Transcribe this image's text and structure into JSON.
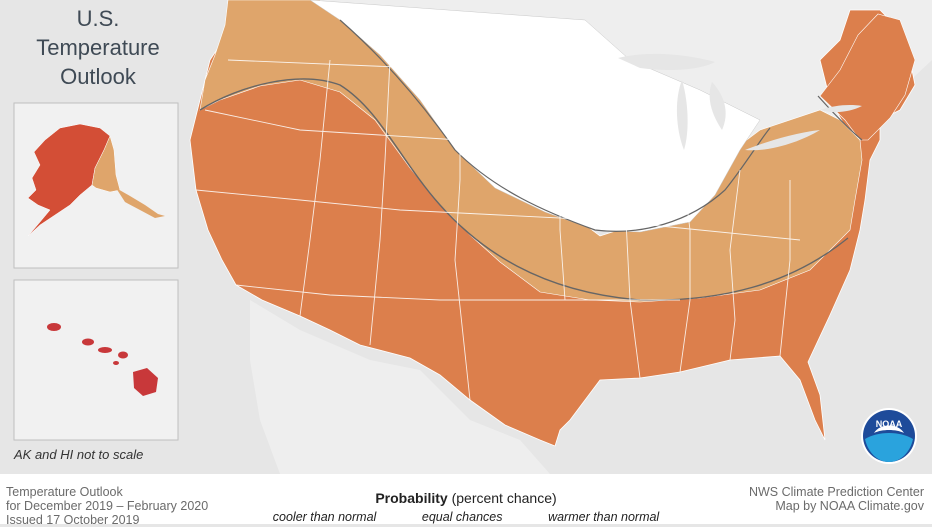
{
  "title": {
    "line1": "U.S.",
    "line2": "Temperature",
    "line3": "Outlook"
  },
  "inset_note": "AK and HI not to scale",
  "footer": {
    "left": {
      "line1": "Temperature Outlook",
      "line2": "for December 2019 – February 2020",
      "line3": "Issued 17 October 2019"
    },
    "center": {
      "label_bold": "Probability",
      "label_rest": " (percent chance)"
    },
    "legend": [
      "cooler than normal",
      "equal chances",
      "warmer than normal"
    ],
    "right": {
      "line1": "NWS Climate Prediction Center",
      "line2": "Map by NOAA Climate.gov"
    }
  },
  "logo_text": "NOAA",
  "colors": {
    "background": "#e6e6e6",
    "equal_chances": "#ffffff",
    "warmer_light": "#dfa56b",
    "warmer_medium": "#dc7f4c",
    "warmer_alaska": "#d34e36",
    "warmer_hawaii": "#c8383a"
  }
}
